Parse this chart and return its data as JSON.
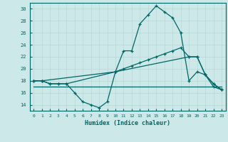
{
  "xlabel": "Humidex (Indice chaleur)",
  "bg_color": "#cce8e8",
  "grid_color": "#b8d8d8",
  "line_color": "#006666",
  "xlim": [
    -0.5,
    23.5
  ],
  "ylim": [
    13.0,
    31.0
  ],
  "yticks": [
    14,
    16,
    18,
    20,
    22,
    24,
    26,
    28,
    30
  ],
  "xticks": [
    0,
    1,
    2,
    3,
    4,
    5,
    6,
    7,
    8,
    9,
    10,
    11,
    12,
    13,
    14,
    15,
    16,
    17,
    18,
    19,
    20,
    21,
    22,
    23
  ],
  "line1_x": [
    0,
    1,
    2,
    3,
    4,
    5,
    6,
    7,
    8,
    9,
    10,
    11,
    12,
    13,
    14,
    15,
    16,
    17,
    18,
    19,
    20,
    21,
    22,
    23
  ],
  "line1_y": [
    18,
    18,
    17.5,
    17.5,
    17.5,
    16.0,
    14.5,
    14.0,
    13.5,
    14.5,
    19.5,
    23.0,
    23.0,
    27.5,
    29.0,
    30.5,
    29.5,
    28.5,
    26.0,
    18.0,
    19.5,
    19.0,
    17.0,
    16.5
  ],
  "line2_x": [
    0,
    1,
    2,
    3,
    4,
    10,
    11,
    12,
    13,
    14,
    15,
    16,
    17,
    18,
    19,
    20,
    21,
    22,
    23
  ],
  "line2_y": [
    18,
    18,
    17.5,
    17.5,
    17.5,
    19.5,
    20.0,
    20.5,
    21.0,
    21.5,
    22.0,
    22.5,
    23.0,
    23.5,
    22.0,
    22.0,
    19.0,
    17.5,
    16.5
  ],
  "line3_x": [
    0,
    1,
    10,
    19,
    20,
    21,
    22,
    23
  ],
  "line3_y": [
    18,
    18,
    19.5,
    22.0,
    22.0,
    19.0,
    17.5,
    16.5
  ],
  "line4_x": [
    0,
    1,
    2,
    3,
    4,
    5,
    6,
    7,
    8,
    9,
    10,
    11,
    12,
    13,
    14,
    15,
    16,
    17,
    18,
    19,
    20,
    21,
    22,
    23
  ],
  "line4_y": [
    17.0,
    17.0,
    17.0,
    17.0,
    17.0,
    17.0,
    17.0,
    17.0,
    17.0,
    17.0,
    17.0,
    17.0,
    17.0,
    17.0,
    17.0,
    17.0,
    17.0,
    17.0,
    17.0,
    17.0,
    17.0,
    17.0,
    17.0,
    17.0
  ]
}
